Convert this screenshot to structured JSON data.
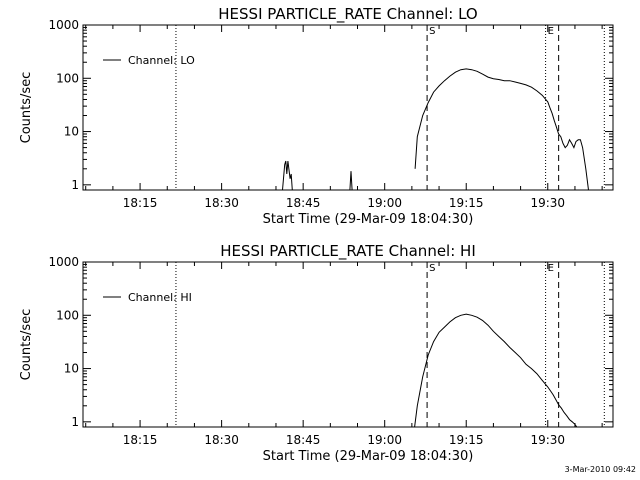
{
  "timestamp_label": "3-Mar-2010 09:42",
  "chart_data": [
    {
      "type": "line",
      "title": "HESSI PARTICLE_RATE Channel: LO",
      "xlabel": "Start Time (29-Mar-09 18:04:30)",
      "ylabel": "Counts/sec",
      "y_scale": "log",
      "ylim": [
        0.8,
        1000
      ],
      "xlim": [
        "18:04:30",
        "19:42:00"
      ],
      "x_ticks": [
        "18:15",
        "18:30",
        "18:45",
        "19:00",
        "19:15",
        "19:30"
      ],
      "y_ticks": [
        "1",
        "10",
        "100",
        "1000"
      ],
      "legend": {
        "position": "top-left",
        "entries": [
          "Channel: LO"
        ]
      },
      "markers": [
        {
          "label": "S",
          "time": "19:07:48",
          "style": "dashed"
        },
        {
          "label": "E",
          "time": "19:29:36",
          "style": "dotted"
        }
      ],
      "extra_lines": [
        {
          "time": "18:21:36",
          "style": "dotted"
        },
        {
          "time": "19:32:00",
          "style": "dashed"
        },
        {
          "time": "19:40:24",
          "style": "dotted"
        }
      ],
      "series": [
        {
          "name": "Channel: LO",
          "segments": [
            {
              "x": [
                "18:41:12",
                "18:41:36",
                "18:41:48",
                "18:42:00",
                "18:42:12",
                "18:42:36",
                "18:42:48",
                "18:43:00"
              ],
              "y": [
                0.8,
                2.4,
                2.8,
                1.6,
                2.8,
                1.3,
                1.6,
                0.8
              ]
            },
            {
              "x": [
                "18:53:36",
                "18:53:48",
                "18:54:00"
              ],
              "y": [
                0.8,
                1.8,
                0.8
              ]
            },
            {
              "x": [
                "19:05:36",
                "19:06:00",
                "19:07:00",
                "19:08:00",
                "19:09:00",
                "19:10:00",
                "19:11:00",
                "19:12:00",
                "19:13:00",
                "19:14:00",
                "19:15:00",
                "19:16:00",
                "19:17:00",
                "19:18:00",
                "19:19:00",
                "19:20:00",
                "19:21:00",
                "19:22:00",
                "19:23:00",
                "19:24:00",
                "19:25:00",
                "19:26:00",
                "19:27:00",
                "19:28:00",
                "19:29:00",
                "19:30:00",
                "19:30:24",
                "19:30:48",
                "19:31:12",
                "19:31:36",
                "19:32:00",
                "19:32:24",
                "19:32:48",
                "19:33:12",
                "19:33:36",
                "19:34:00",
                "19:34:24",
                "19:34:48",
                "19:35:12",
                "19:35:36",
                "19:36:00",
                "19:36:24",
                "19:37:00",
                "19:37:30"
              ],
              "y": [
                2,
                8,
                20,
                35,
                55,
                72,
                90,
                110,
                130,
                145,
                150,
                145,
                135,
                120,
                105,
                98,
                95,
                90,
                90,
                85,
                80,
                75,
                68,
                58,
                48,
                36,
                28,
                22,
                16,
                12,
                9,
                8,
                6,
                5,
                5.5,
                7,
                6,
                5,
                6.5,
                7,
                7,
                5,
                2,
                0.8
              ]
            }
          ]
        }
      ]
    },
    {
      "type": "line",
      "title": "HESSI PARTICLE_RATE Channel: HI",
      "xlabel": "Start Time (29-Mar-09 18:04:30)",
      "ylabel": "Counts/sec",
      "y_scale": "log",
      "ylim": [
        0.8,
        1000
      ],
      "xlim": [
        "18:04:30",
        "19:42:00"
      ],
      "x_ticks": [
        "18:15",
        "18:30",
        "18:45",
        "19:00",
        "19:15",
        "19:30"
      ],
      "y_ticks": [
        "1",
        "10",
        "100",
        "1000"
      ],
      "legend": {
        "position": "top-left",
        "entries": [
          "Channel: HI"
        ]
      },
      "markers": [
        {
          "label": "S",
          "time": "19:07:48",
          "style": "dashed"
        },
        {
          "label": "E",
          "time": "19:29:36",
          "style": "dotted"
        }
      ],
      "extra_lines": [
        {
          "time": "18:21:36",
          "style": "dotted"
        },
        {
          "time": "19:32:00",
          "style": "dashed"
        },
        {
          "time": "19:40:24",
          "style": "dotted"
        }
      ],
      "series": [
        {
          "name": "Channel: HI",
          "segments": [
            {
              "x": [
                "19:05:30",
                "19:06:00",
                "19:07:00",
                "19:08:00",
                "19:09:00",
                "19:10:00",
                "19:11:00",
                "19:12:00",
                "19:13:00",
                "19:14:00",
                "19:15:00",
                "19:16:00",
                "19:17:00",
                "19:18:00",
                "19:19:00",
                "19:20:00",
                "19:21:00",
                "19:22:00",
                "19:23:00",
                "19:24:00",
                "19:25:00",
                "19:26:00",
                "19:27:00",
                "19:28:00",
                "19:29:00",
                "19:30:00",
                "19:30:30",
                "19:31:00",
                "19:31:30",
                "19:32:00",
                "19:32:30",
                "19:33:00",
                "19:33:30",
                "19:34:00",
                "19:34:30",
                "19:35:00",
                "19:35:20"
              ],
              "y": [
                0.8,
                2,
                7,
                18,
                32,
                48,
                60,
                75,
                90,
                100,
                105,
                100,
                92,
                80,
                65,
                50,
                40,
                32,
                25,
                20,
                16,
                12,
                10,
                8,
                6,
                4.5,
                3.8,
                3.2,
                2.6,
                2.1,
                1.8,
                1.5,
                1.3,
                1.1,
                1,
                0.9,
                0.8
              ]
            }
          ]
        }
      ]
    }
  ]
}
